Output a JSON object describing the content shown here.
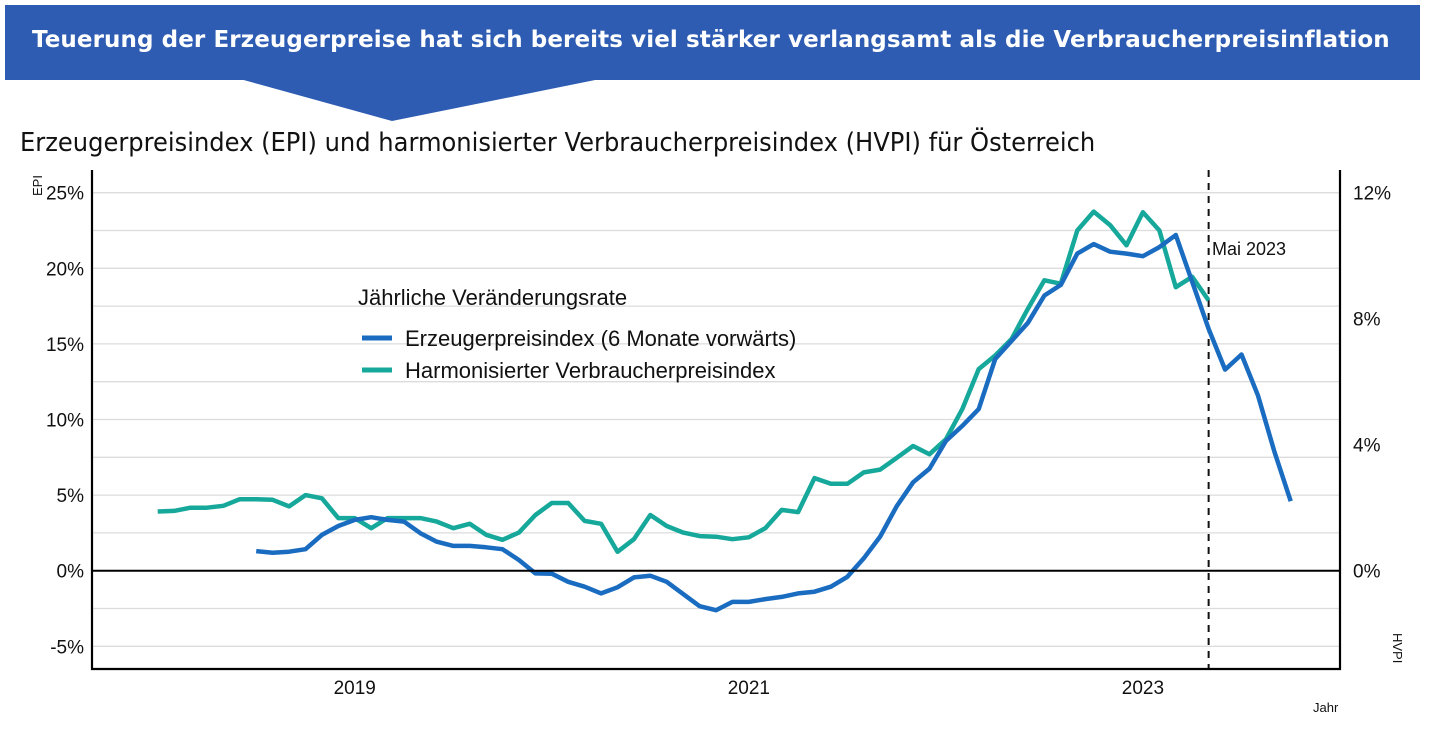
{
  "banner": {
    "text": "Teuerung der Erzeugerpreise hat sich bereits viel stärker verlangsamt als die Verbraucherpreisinflation",
    "color": "#2e5cb3"
  },
  "chart_data": {
    "type": "line",
    "title": "Erzeugerpreisindex (EPI) und harmonisierter Verbraucherpreisindex (HVPI) für Österreich",
    "xlabel": "Jahr",
    "ylabel_left": "EPI",
    "ylabel_right": "HVPI",
    "x_ticks": [
      "2019",
      "2021",
      "2023"
    ],
    "x_range": [
      "2017-09",
      "2024-01"
    ],
    "y_left": {
      "range": [
        -6.5,
        26.5
      ],
      "ticks": [
        "-5%",
        "0%",
        "5%",
        "10%",
        "15%",
        "20%",
        "25%"
      ],
      "tick_values": [
        -5,
        0,
        5,
        10,
        15,
        20,
        25
      ],
      "grid_step": 2.5
    },
    "y_right": {
      "range": [
        -3.12,
        12.72
      ],
      "ticks": [
        "0%",
        "4%",
        "8%",
        "12%"
      ],
      "tick_values": [
        0,
        4,
        8,
        12
      ]
    },
    "grid": true,
    "legend": {
      "title": "Jährliche Veränderungsrate",
      "placement": "upper-left-center"
    },
    "annotation": {
      "label": "Mai 2023",
      "x": "2023-05",
      "style": "dashed-vertical"
    },
    "series": [
      {
        "name": "Erzeugerpreisindex (6 Monate vorwärts)",
        "axis": "left",
        "color": "#1a6cc0",
        "x": [
          "2018-07",
          "2018-08",
          "2018-09",
          "2018-10",
          "2018-11",
          "2018-12",
          "2019-01",
          "2019-02",
          "2019-03",
          "2019-04",
          "2019-05",
          "2019-06",
          "2019-07",
          "2019-08",
          "2019-09",
          "2019-10",
          "2019-11",
          "2019-12",
          "2020-01",
          "2020-02",
          "2020-03",
          "2020-04",
          "2020-05",
          "2020-06",
          "2020-07",
          "2020-08",
          "2020-09",
          "2020-10",
          "2020-11",
          "2020-12",
          "2021-01",
          "2021-02",
          "2021-03",
          "2021-04",
          "2021-05",
          "2021-06",
          "2021-07",
          "2021-08",
          "2021-09",
          "2021-10",
          "2021-11",
          "2021-12",
          "2022-01",
          "2022-02",
          "2022-03",
          "2022-04",
          "2022-05",
          "2022-06",
          "2022-07",
          "2022-08",
          "2022-09",
          "2022-10",
          "2022-11",
          "2022-12",
          "2023-01",
          "2023-02",
          "2023-03",
          "2023-04",
          "2023-05",
          "2023-06",
          "2023-07",
          "2023-08",
          "2023-09",
          "2023-10"
        ],
        "values": [
          1.3,
          1.19,
          1.26,
          1.42,
          2.37,
          2.96,
          3.36,
          3.54,
          3.36,
          3.25,
          2.48,
          1.92,
          1.64,
          1.64,
          1.55,
          1.42,
          0.71,
          -0.18,
          -0.2,
          -0.73,
          -1.06,
          -1.5,
          -1.1,
          -0.44,
          -0.33,
          -0.73,
          -1.55,
          -2.35,
          -2.61,
          -2.06,
          -2.06,
          -1.88,
          -1.73,
          -1.5,
          -1.39,
          -1.06,
          -0.4,
          0.82,
          2.26,
          4.25,
          5.85,
          6.75,
          8.58,
          9.58,
          10.69,
          14.0,
          15.2,
          16.4,
          18.2,
          18.9,
          20.97,
          21.6,
          21.1,
          20.97,
          20.8,
          21.4,
          22.2,
          19.1,
          16.0,
          13.3,
          14.3,
          11.6,
          7.9,
          4.6
        ]
      },
      {
        "name": "Harmonisierter Verbraucherpreisindex",
        "axis": "right",
        "color": "#16a89a",
        "x": [
          "2018-01",
          "2018-02",
          "2018-03",
          "2018-04",
          "2018-05",
          "2018-06",
          "2018-07",
          "2018-08",
          "2018-09",
          "2018-10",
          "2018-11",
          "2018-12",
          "2019-01",
          "2019-02",
          "2019-03",
          "2019-04",
          "2019-05",
          "2019-06",
          "2019-07",
          "2019-08",
          "2019-09",
          "2019-10",
          "2019-11",
          "2019-12",
          "2020-01",
          "2020-02",
          "2020-03",
          "2020-04",
          "2020-05",
          "2020-06",
          "2020-07",
          "2020-08",
          "2020-09",
          "2020-10",
          "2020-11",
          "2020-12",
          "2021-01",
          "2021-02",
          "2021-03",
          "2021-04",
          "2021-05",
          "2021-06",
          "2021-07",
          "2021-08",
          "2021-09",
          "2021-10",
          "2021-11",
          "2021-12",
          "2022-01",
          "2022-02",
          "2022-03",
          "2022-04",
          "2022-05",
          "2022-06",
          "2022-07",
          "2022-08",
          "2022-09",
          "2022-10",
          "2022-11",
          "2022-12",
          "2023-01",
          "2023-02",
          "2023-03",
          "2023-04",
          "2023-05"
        ],
        "values": [
          1.88,
          1.9,
          2.0,
          2.0,
          2.06,
          2.27,
          2.27,
          2.25,
          2.04,
          2.4,
          2.3,
          1.67,
          1.67,
          1.35,
          1.67,
          1.67,
          1.67,
          1.56,
          1.35,
          1.49,
          1.14,
          0.98,
          1.21,
          1.77,
          2.15,
          2.15,
          1.58,
          1.49,
          0.6,
          1.0,
          1.77,
          1.42,
          1.21,
          1.1,
          1.08,
          1.0,
          1.06,
          1.35,
          1.93,
          1.86,
          2.94,
          2.76,
          2.76,
          3.12,
          3.21,
          3.58,
          3.96,
          3.7,
          4.17,
          5.13,
          6.4,
          6.83,
          7.36,
          8.32,
          9.22,
          9.11,
          10.8,
          11.4,
          10.97,
          10.33,
          11.38,
          10.8,
          9.0,
          9.33,
          8.58
        ]
      }
    ]
  }
}
